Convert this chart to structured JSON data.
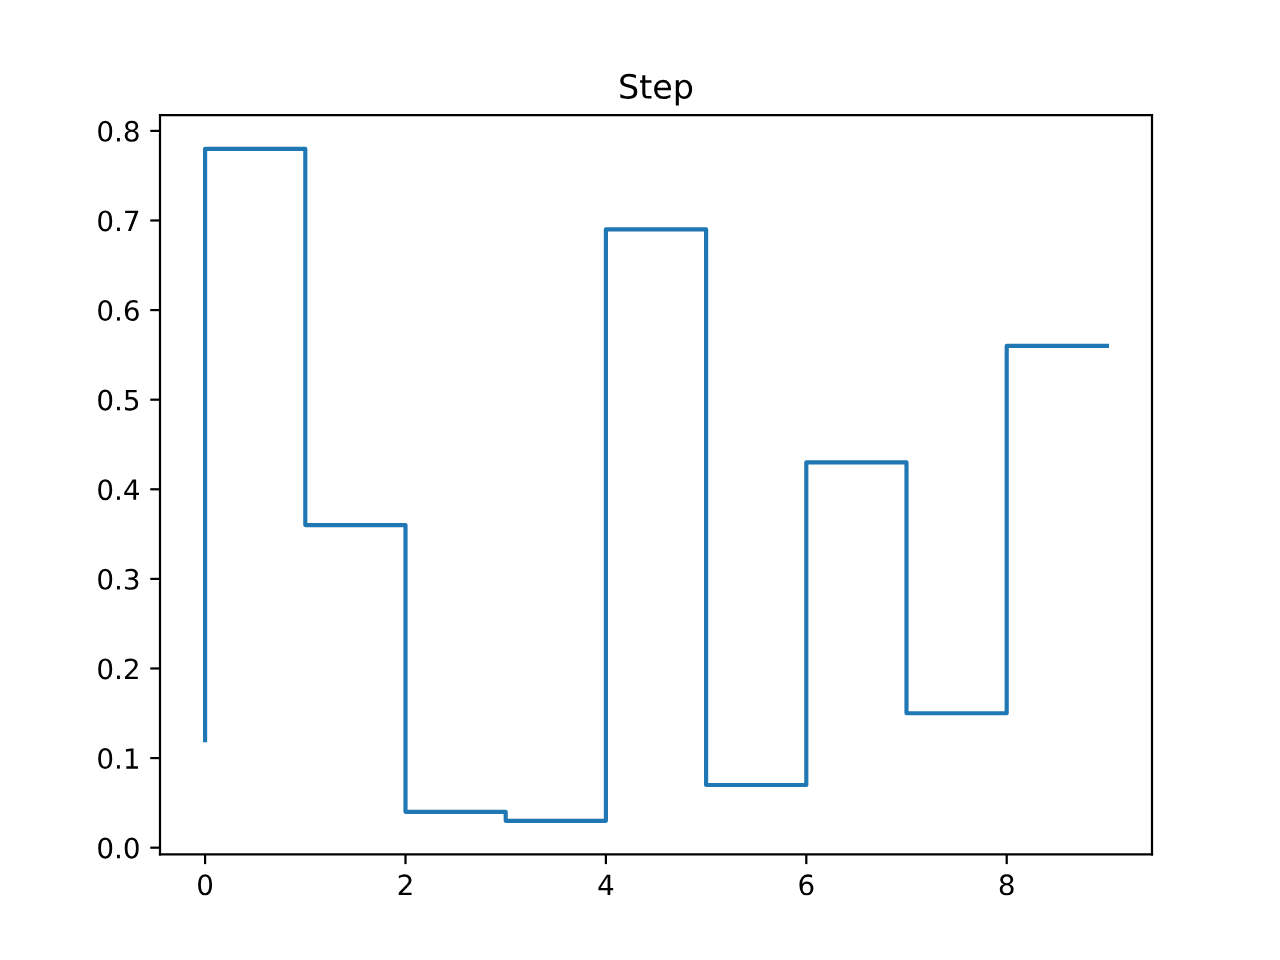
{
  "chart_data": {
    "type": "step",
    "title": "Step",
    "x": [
      0,
      1,
      2,
      3,
      4,
      5,
      6,
      7,
      8,
      9
    ],
    "series": [
      {
        "color": "#1f77b4",
        "values": [
          0.12,
          0.78,
          0.36,
          0.04,
          0.03,
          0.69,
          0.07,
          0.43,
          0.15,
          0.56
        ]
      }
    ],
    "xlim": [
      -0.45,
      9.45
    ],
    "ylim": [
      -0.0075,
      0.8175
    ],
    "xticks": [
      0,
      2,
      4,
      6,
      8
    ],
    "yticks": [
      {
        "value": 0,
        "label": "0.0"
      },
      0.1,
      0.2,
      0.3,
      0.4,
      0.5,
      0.6,
      0.7,
      0.8
    ],
    "grid": false
  }
}
